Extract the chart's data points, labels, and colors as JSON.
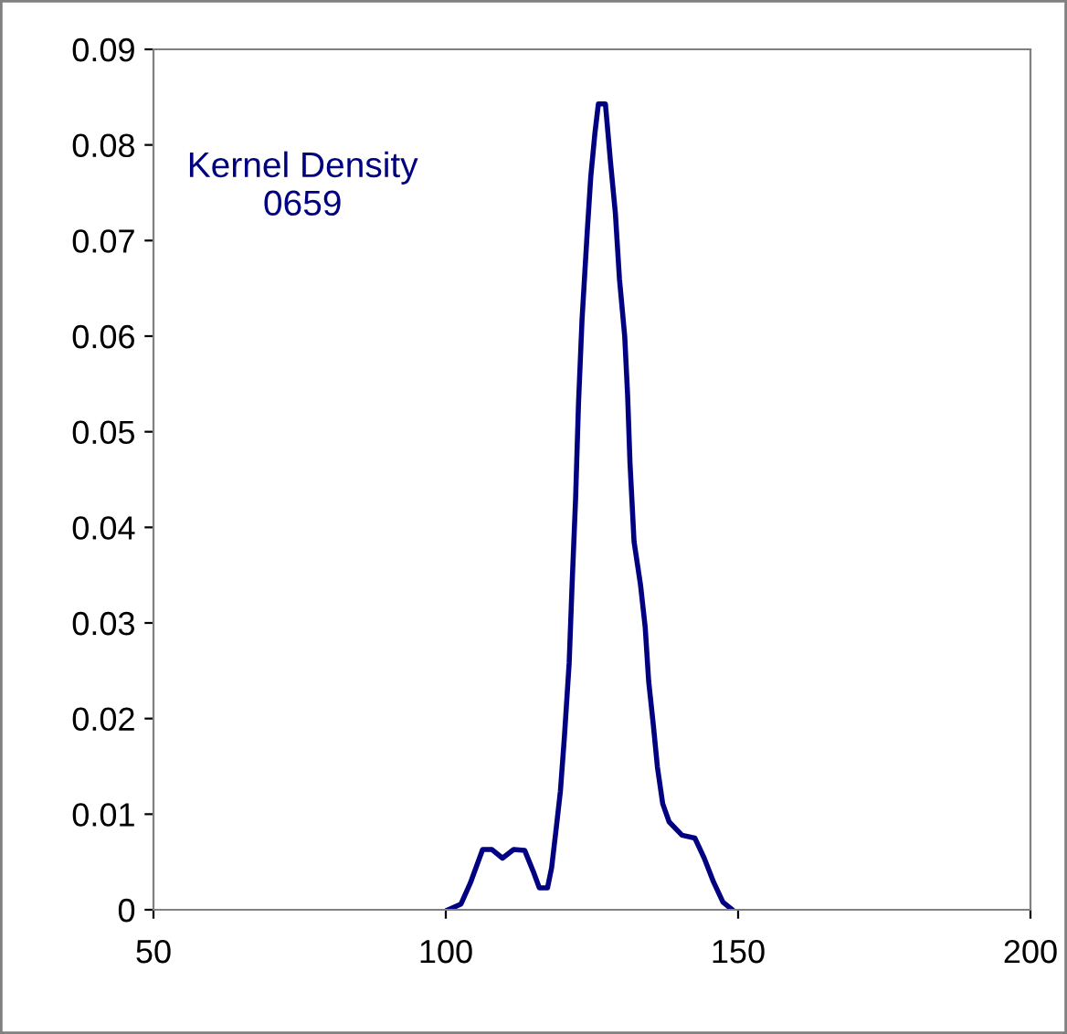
{
  "chart_data": {
    "type": "line",
    "x": [
      100.4,
      102.6,
      104.2,
      106.3,
      107.9,
      109.7,
      111.6,
      113.5,
      114.9,
      116,
      117.4,
      118.1,
      118.9,
      119.6,
      120.3,
      121.1,
      121.6,
      122.2,
      122.7,
      123.3,
      124.2,
      124.8,
      125.5,
      126.1,
      127.3,
      127.7,
      128.2,
      129,
      129.7,
      130.6,
      131.1,
      131.5,
      132.2,
      133.3,
      134.1,
      134.7,
      135.5,
      136.2,
      137.1,
      138.2,
      140.4,
      142.6,
      144.2,
      145.8,
      147.4,
      149
    ],
    "series": [
      {
        "color": "#000080",
        "values": [
          0,
          0.0006,
          0.0028,
          0.0063,
          0.0063,
          0.0054,
          0.0063,
          0.0062,
          0.0041,
          0.0023,
          0.0023,
          0.0044,
          0.0086,
          0.0124,
          0.0182,
          0.0258,
          0.034,
          0.043,
          0.053,
          0.0617,
          0.071,
          0.0767,
          0.0812,
          0.0843,
          0.0843,
          0.0815,
          0.078,
          0.0729,
          0.066,
          0.06,
          0.0538,
          0.0468,
          0.0385,
          0.034,
          0.0296,
          0.0239,
          0.0193,
          0.0149,
          0.0111,
          0.0092,
          0.0078,
          0.0075,
          0.0054,
          0.0029,
          0.0008,
          0
        ]
      }
    ],
    "annotations": [
      "Kernel Density\n0659"
    ],
    "xlim": [
      50,
      200
    ],
    "xticks": [
      50,
      100,
      150,
      200
    ],
    "ylim": [
      0,
      0.09
    ],
    "yticks": [
      0,
      {
        "value": 0.01,
        "label": "0.01"
      },
      {
        "value": 0.02,
        "label": "0.02"
      },
      {
        "value": 0.03,
        "label": "0.03"
      },
      {
        "value": 0.04,
        "label": "0.04"
      },
      {
        "value": 0.05,
        "label": "0.05"
      },
      {
        "value": 0.06,
        "label": "0.06"
      },
      {
        "value": 0.07,
        "label": "0.07"
      },
      {
        "value": 0.08,
        "label": "0.08"
      },
      {
        "value": 0.09,
        "label": "0.09"
      }
    ],
    "grid": false,
    "legend": false,
    "marker": "none",
    "line_style": "solid"
  }
}
